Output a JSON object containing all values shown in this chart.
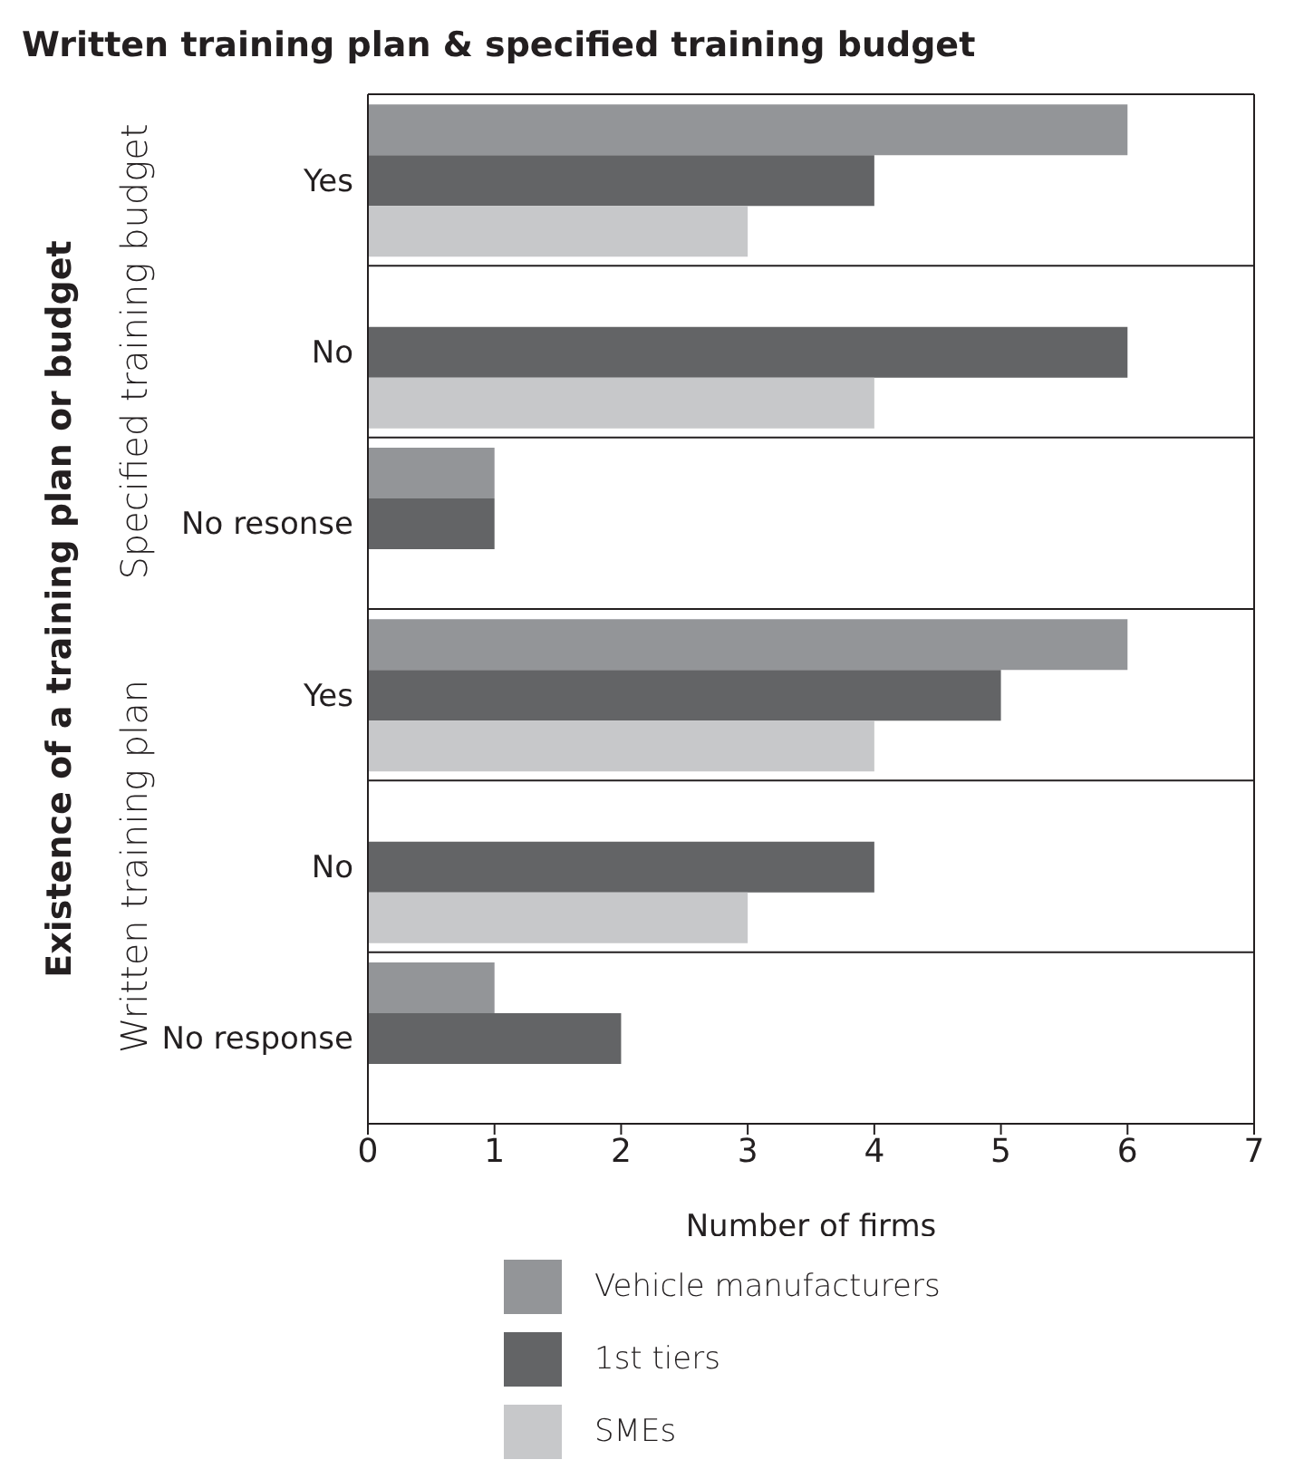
{
  "chart_data": {
    "type": "bar",
    "orientation": "horizontal",
    "title": "Written training plan & specified training budget",
    "ylabel": "Existence of a training plan or budget",
    "xlabel": "Number of firms",
    "categories": [
      "Yes",
      "No",
      "No resonse",
      "Yes",
      "No",
      "No response"
    ],
    "series": [
      {
        "name": "Vehicle manufacturers",
        "color": "#939598",
        "values": [
          6,
          0,
          1,
          6,
          0,
          1
        ]
      },
      {
        "name": "1st tiers",
        "color": "#636466",
        "values": [
          4,
          6,
          1,
          5,
          4,
          2
        ]
      },
      {
        "name": "SMEs",
        "color": "#c7c8ca",
        "values": [
          3,
          4,
          0,
          4,
          3,
          0
        ]
      }
    ],
    "xlim": [
      0,
      7
    ],
    "xticks": [
      0,
      1,
      2,
      3,
      4,
      5,
      6,
      7
    ],
    "grid": "y",
    "legend": "bottom",
    "annotations": [
      "Specified training budget",
      "Written training plan"
    ]
  }
}
